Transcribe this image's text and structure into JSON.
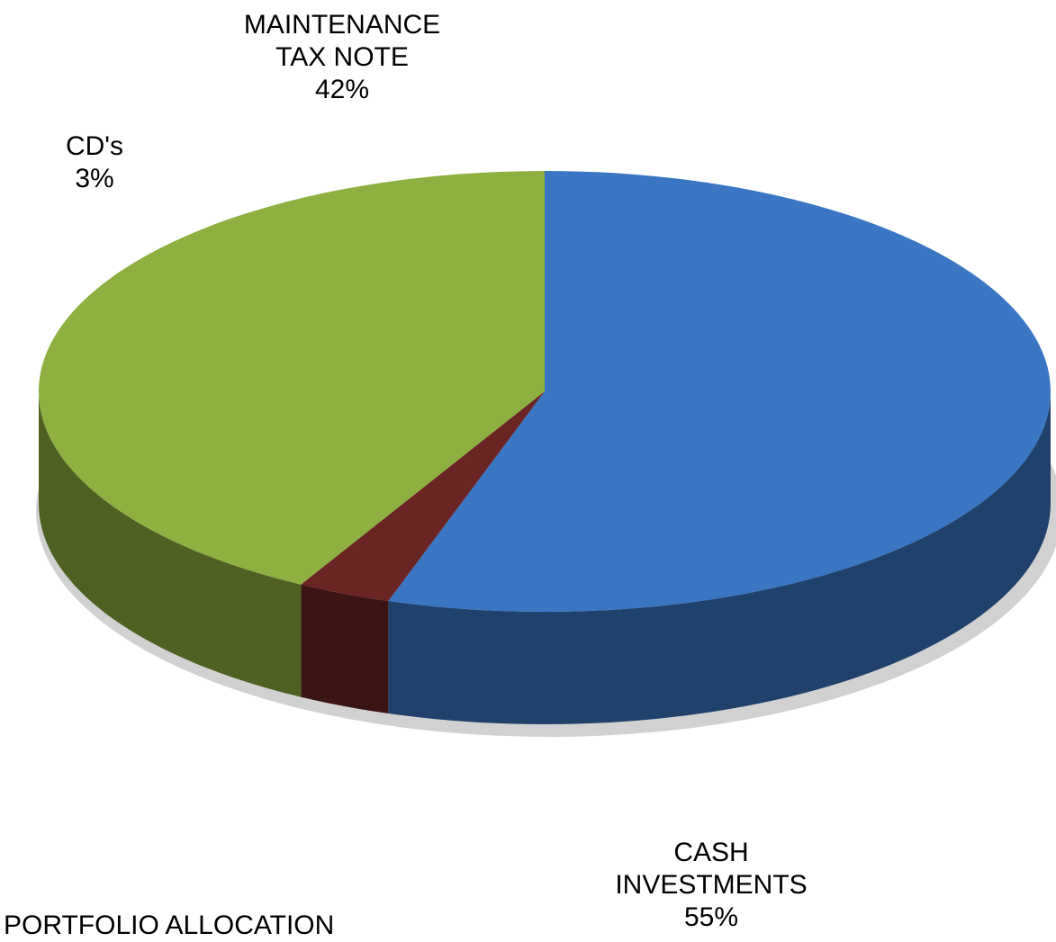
{
  "chart_data": {
    "type": "pie",
    "title": "PORTFOLIO ALLOCATION",
    "categories": [
      "CASH INVESTMENTS",
      "CD's",
      "MAINTENANCE TAX NOTE"
    ],
    "values": [
      55,
      3,
      42
    ],
    "value_labels": [
      "55%",
      "3%",
      "42%"
    ],
    "colors": [
      "#3a76c4",
      "#6b2424",
      "#8db040"
    ]
  }
}
